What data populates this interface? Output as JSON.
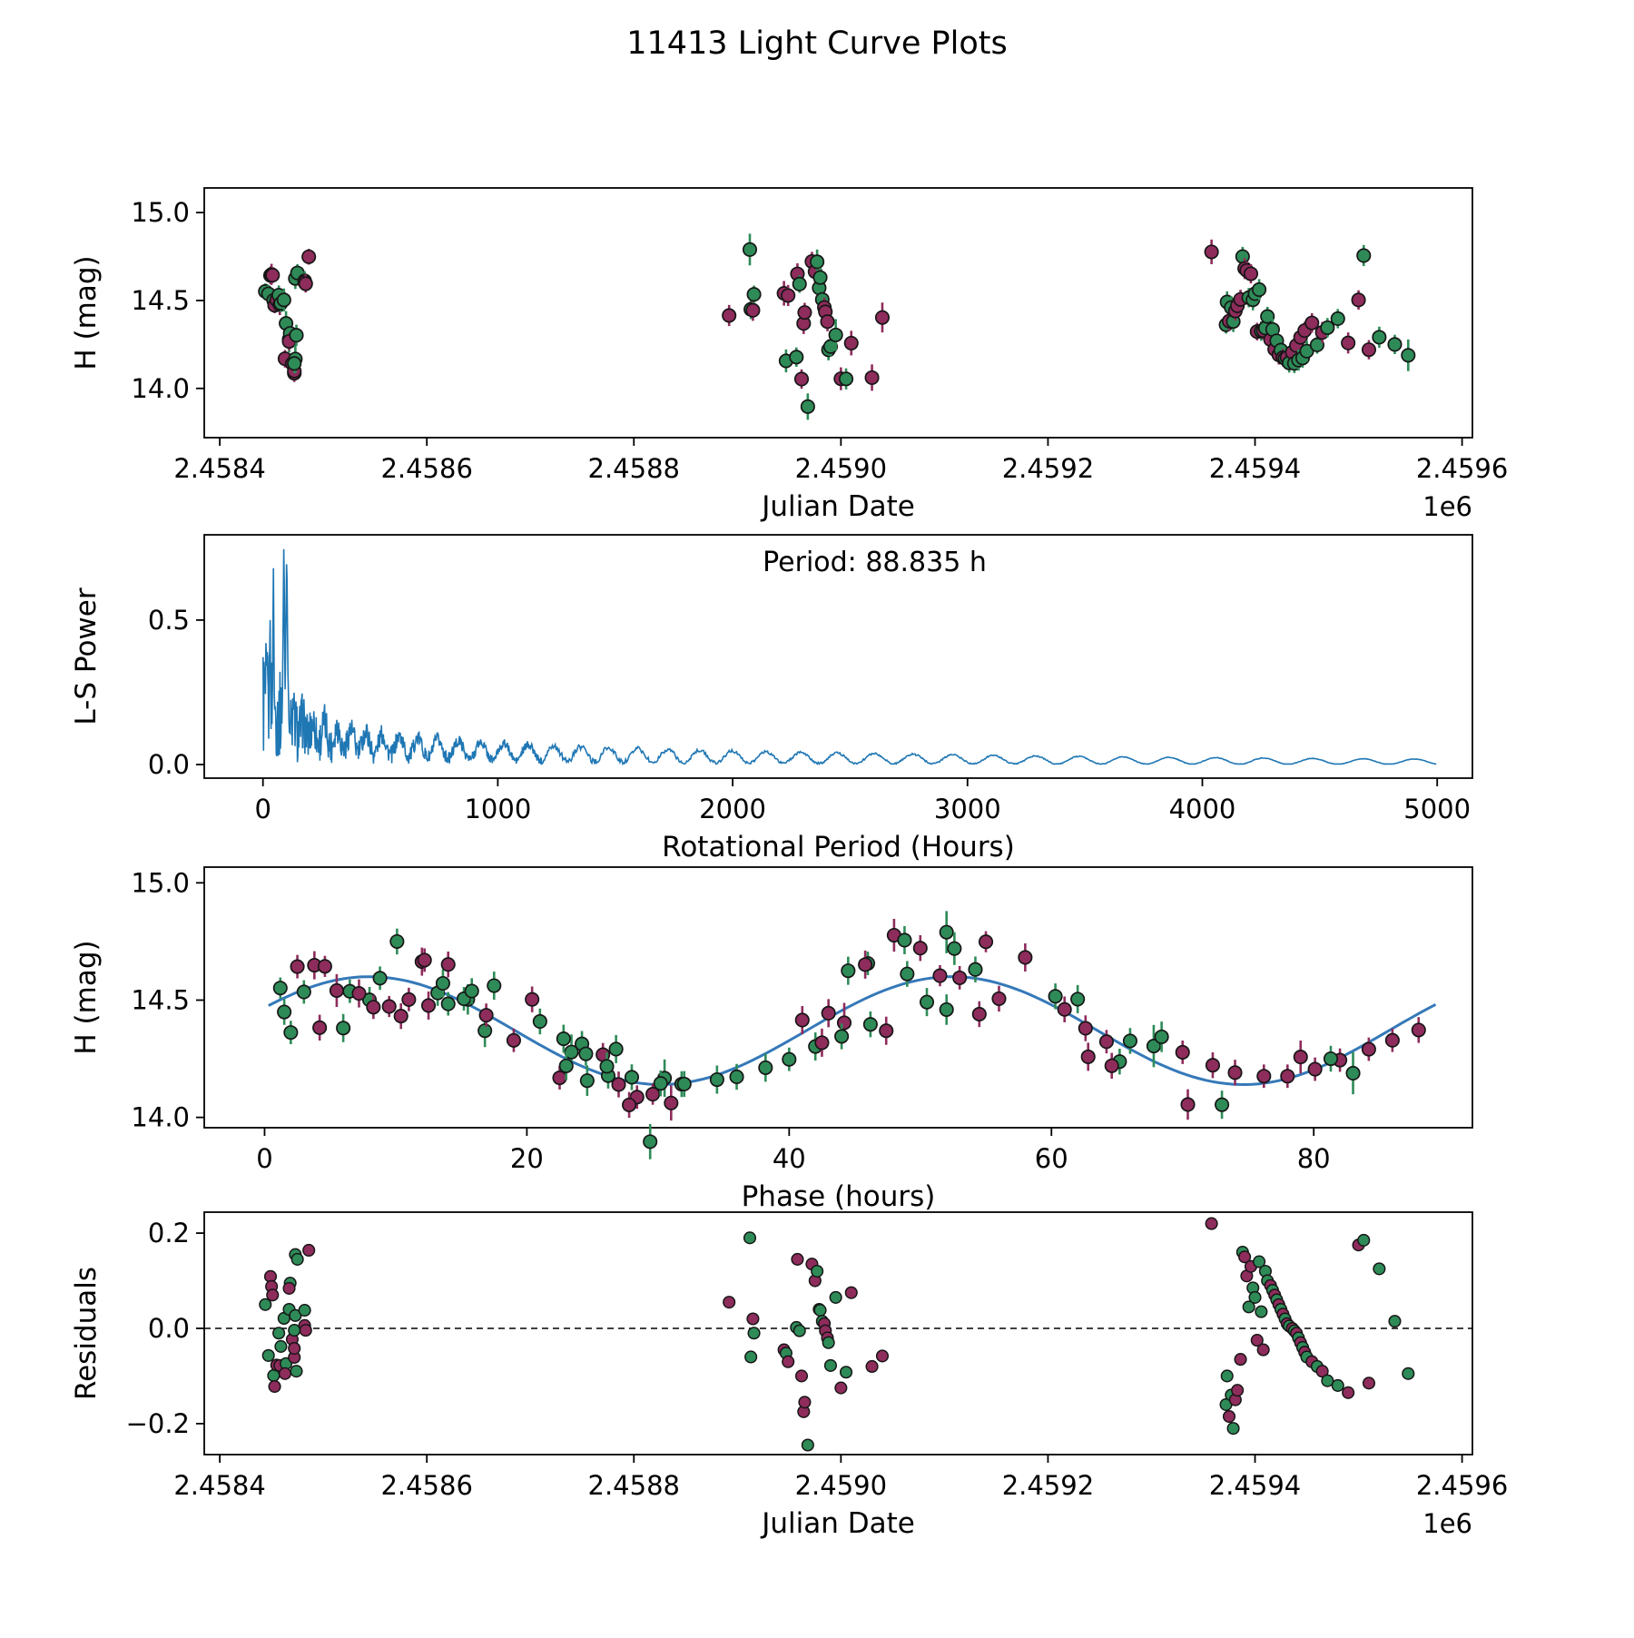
{
  "figure": {
    "title": "11413 Light Curve Plots",
    "background": "#ffffff"
  },
  "colors": {
    "band_green": "#2e8b57",
    "band_purple": "#8e2c5c",
    "marker_edge": "#161616",
    "periodogram_line": "#1f77b4",
    "fit_line": "#3579b8",
    "zero_dash": "#000000",
    "text": "#000000"
  },
  "model_fit": {
    "mean_mag": 14.37,
    "amplitude_mag": 0.23,
    "period_hours": 88.835,
    "cycles_per_period": 2,
    "peak_phase_hours": 8.0,
    "curve_x_start": 0.3,
    "curve_x_end": 89.5
  },
  "chart_data": [
    {
      "type": "scatter",
      "id": "light_curve_jd",
      "xlabel": "Julian Date",
      "ylabel": "H (mag)",
      "offset_label": "1e6",
      "xlim": [
        2.458385,
        2.45961
      ],
      "ylim": [
        13.72,
        15.14
      ],
      "xticks": [
        2.4584,
        2.4586,
        2.4588,
        2.459,
        2.4592,
        2.4594,
        2.4596
      ],
      "xtick_labels": [
        "2.4584",
        "2.4586",
        "2.4588",
        "2.4590",
        "2.4592",
        "2.4594",
        "2.4596"
      ],
      "yticks": [
        14.0,
        14.5,
        15.0
      ],
      "ytick_labels": [
        "14.0",
        "14.5",
        "15.0"
      ],
      "points_from": "points",
      "x_field": "jd_1e6",
      "y_field": "h_mag",
      "error_bars": true
    },
    {
      "type": "line",
      "id": "periodogram",
      "xlabel": "Rotational Period (Hours)",
      "ylabel": "L-S Power",
      "annotation": "Period: 88.835 h",
      "best_period_hours": 88.835,
      "xlim": [
        -250,
        5150
      ],
      "ylim": [
        -0.047,
        0.795
      ],
      "xticks": [
        0,
        1000,
        2000,
        3000,
        4000,
        5000
      ],
      "xtick_labels": [
        "0",
        "1000",
        "2000",
        "3000",
        "4000",
        "5000"
      ],
      "yticks": [
        0.0,
        0.5
      ],
      "ytick_labels": [
        "0.0",
        "0.5"
      ],
      "x_start": 0.5,
      "x_end": 5000,
      "peaks": [
        {
          "period": 30.0,
          "power": 0.52,
          "width": 2.5
        },
        {
          "period": 44.4,
          "power": 0.68,
          "width": 3.0
        },
        {
          "period": 88.8,
          "power": 0.75,
          "width": 4.0
        },
        {
          "period": 101.0,
          "power": 0.7,
          "width": 5.0
        }
      ],
      "noise_envelope": {
        "a1": 0.3,
        "s1": 130,
        "a2": 0.12,
        "s2": 450,
        "a3": 0.035,
        "s3": 1500
      },
      "slow_oscillation": {
        "amp_a": 0.075,
        "amp_scale": 2600,
        "amp_floor": 0.007,
        "sqrt_freq": 3.97
      }
    },
    {
      "type": "scatter+line",
      "id": "phase_folded",
      "xlabel": "Phase (hours)",
      "ylabel": "H (mag)",
      "xlim": [
        -4.6,
        92.1
      ],
      "ylim": [
        13.956,
        15.067
      ],
      "xticks": [
        0,
        20,
        40,
        60,
        80
      ],
      "xtick_labels": [
        "0",
        "20",
        "40",
        "60",
        "80"
      ],
      "yticks": [
        14.0,
        14.5,
        15.0
      ],
      "ytick_labels": [
        "14.0",
        "14.5",
        "15.0"
      ],
      "points_from": "points",
      "x_field": "phase_hours",
      "y_field": "h_mag",
      "error_bars": true
    },
    {
      "type": "scatter",
      "id": "residuals",
      "xlabel": "Julian Date",
      "ylabel": "Residuals",
      "offset_label": "1e6",
      "xlim": [
        2.458385,
        2.45961
      ],
      "ylim": [
        -0.265,
        0.244
      ],
      "xticks": [
        2.4584,
        2.4586,
        2.4588,
        2.459,
        2.4592,
        2.4594,
        2.4596
      ],
      "xtick_labels": [
        "2.4584",
        "2.4586",
        "2.4588",
        "2.4590",
        "2.4592",
        "2.4594",
        "2.4596"
      ],
      "yticks": [
        -0.2,
        0.0,
        0.2
      ],
      "ytick_labels": [
        "−0.2",
        "0.0",
        "0.2"
      ],
      "zero_line": true,
      "points_from": "points",
      "x_field": "jd_1e6",
      "y_field": "residual_mag",
      "error_bars": false
    }
  ],
  "points": {
    "fields": [
      "jd_1e6",
      "phase_hours",
      "residual_mag",
      "err_mag",
      "band"
    ],
    "bands": {
      "g": "green",
      "p": "purple"
    },
    "rows": [
      [
        2.458444,
        1.2,
        0.05,
        0.045,
        "g"
      ],
      [
        2.458449,
        2.5,
        0.109,
        0.05,
        "p"
      ],
      [
        2.45845,
        3.8,
        0.088,
        0.06,
        "p"
      ],
      [
        2.458451,
        4.6,
        0.07,
        0.045,
        "p"
      ],
      [
        2.458447,
        6.5,
        -0.057,
        0.05,
        "g"
      ],
      [
        2.458452,
        8.0,
        -0.099,
        0.055,
        "g"
      ],
      [
        2.458453,
        9.5,
        -0.122,
        0.045,
        "p"
      ],
      [
        2.458455,
        11.0,
        -0.077,
        0.05,
        "p"
      ],
      [
        2.458458,
        12.5,
        -0.078,
        0.06,
        "p"
      ],
      [
        2.458457,
        13.2,
        -0.01,
        0.055,
        "g"
      ],
      [
        2.458459,
        14.0,
        -0.038,
        0.05,
        "g"
      ],
      [
        2.458462,
        15.5,
        0.021,
        0.065,
        "g"
      ],
      [
        2.458464,
        16.8,
        -0.074,
        0.07,
        "g"
      ],
      [
        2.458463,
        22.5,
        -0.095,
        0.05,
        "p"
      ],
      [
        2.458467,
        23.4,
        0.04,
        0.075,
        "g"
      ],
      [
        2.458468,
        24.2,
        0.095,
        0.055,
        "g"
      ],
      [
        2.458467,
        25.8,
        0.084,
        0.05,
        "p"
      ],
      [
        2.45847,
        27.0,
        -0.023,
        0.055,
        "p"
      ],
      [
        2.458472,
        28.4,
        -0.061,
        0.05,
        "p"
      ],
      [
        2.458472,
        29.6,
        -0.042,
        0.045,
        "p"
      ],
      [
        2.458473,
        30.5,
        0.027,
        0.08,
        "g"
      ],
      [
        2.458472,
        31.8,
        -0.004,
        0.055,
        "g"
      ],
      [
        2.458474,
        42.0,
        -0.09,
        0.06,
        "g"
      ],
      [
        2.458473,
        44.5,
        0.155,
        0.06,
        "g"
      ],
      [
        2.458475,
        46.0,
        0.145,
        0.05,
        "g"
      ],
      [
        2.458482,
        49.0,
        0.038,
        0.055,
        "g"
      ],
      [
        2.458482,
        51.5,
        0.006,
        0.045,
        "p"
      ],
      [
        2.458483,
        53.0,
        -0.004,
        0.05,
        "p"
      ],
      [
        2.458486,
        55.0,
        0.164,
        0.045,
        "p"
      ],
      [
        2.458892,
        41.0,
        0.055,
        0.06,
        "p"
      ],
      [
        2.458912,
        52.0,
        0.19,
        0.09,
        "g"
      ],
      [
        2.458913,
        1.5,
        -0.06,
        0.055,
        "g"
      ],
      [
        2.458915,
        43.0,
        0.02,
        0.06,
        "p"
      ],
      [
        2.458916,
        3.0,
        -0.01,
        0.05,
        "g"
      ],
      [
        2.458945,
        5.5,
        -0.045,
        0.07,
        "p"
      ],
      [
        2.458947,
        24.6,
        -0.052,
        0.065,
        "g"
      ],
      [
        2.458949,
        7.2,
        -0.07,
        0.06,
        "p"
      ],
      [
        2.458957,
        26.2,
        0.002,
        0.055,
        "g"
      ],
      [
        2.458958,
        45.8,
        0.145,
        0.06,
        "p"
      ],
      [
        2.45896,
        8.8,
        -0.005,
        0.05,
        "g"
      ],
      [
        2.458962,
        27.8,
        -0.1,
        0.055,
        "p"
      ],
      [
        2.458964,
        47.4,
        -0.175,
        0.06,
        "p"
      ],
      [
        2.458965,
        10.4,
        -0.155,
        0.055,
        "p"
      ],
      [
        2.458968,
        29.4,
        -0.245,
        0.075,
        "g"
      ],
      [
        2.458972,
        50.0,
        0.135,
        0.055,
        "p"
      ],
      [
        2.458975,
        12.0,
        0.1,
        0.06,
        "p"
      ],
      [
        2.458977,
        52.6,
        0.12,
        0.07,
        "g"
      ],
      [
        2.458979,
        13.6,
        0.04,
        0.06,
        "g"
      ],
      [
        2.45898,
        54.2,
        0.038,
        0.055,
        "g"
      ],
      [
        2.458982,
        15.2,
        0.015,
        0.05,
        "g"
      ],
      [
        2.458984,
        61.0,
        0.01,
        0.055,
        "p"
      ],
      [
        2.458985,
        16.9,
        -0.005,
        0.05,
        "p"
      ],
      [
        2.458987,
        62.6,
        -0.02,
        0.055,
        "p"
      ],
      [
        2.458988,
        23.0,
        -0.03,
        0.06,
        "g"
      ],
      [
        2.45899,
        65.2,
        -0.078,
        0.055,
        "g"
      ],
      [
        2.458995,
        67.8,
        0.065,
        0.09,
        "g"
      ],
      [
        2.459,
        70.4,
        -0.125,
        0.065,
        "p"
      ],
      [
        2.459005,
        73.0,
        -0.092,
        0.06,
        "g"
      ],
      [
        2.45901,
        79.0,
        0.075,
        0.07,
        "p"
      ],
      [
        2.45903,
        31.0,
        -0.08,
        0.075,
        "p"
      ],
      [
        2.45904,
        44.2,
        -0.058,
        0.085,
        "p"
      ],
      [
        2.459358,
        48.0,
        0.22,
        0.07,
        "p"
      ],
      [
        2.459372,
        2.0,
        -0.16,
        0.05,
        "g"
      ],
      [
        2.459373,
        50.5,
        -0.1,
        0.06,
        "g"
      ],
      [
        2.459375,
        4.2,
        -0.185,
        0.055,
        "p"
      ],
      [
        2.459377,
        52.0,
        -0.14,
        0.065,
        "g"
      ],
      [
        2.459379,
        6.0,
        -0.21,
        0.06,
        "g"
      ],
      [
        2.459381,
        54.5,
        -0.15,
        0.055,
        "p"
      ],
      [
        2.459383,
        8.3,
        -0.13,
        0.05,
        "p"
      ],
      [
        2.459386,
        56.0,
        -0.065,
        0.055,
        "p"
      ],
      [
        2.459388,
        10.1,
        0.16,
        0.055,
        "g"
      ],
      [
        2.45939,
        58.0,
        0.15,
        0.06,
        "p"
      ],
      [
        2.459392,
        12.2,
        0.11,
        0.05,
        "p"
      ],
      [
        2.459394,
        60.3,
        0.045,
        0.055,
        "g"
      ],
      [
        2.459396,
        14.0,
        0.13,
        0.055,
        "p"
      ],
      [
        2.459398,
        62.0,
        0.085,
        0.06,
        "g"
      ],
      [
        2.4594,
        15.8,
        0.065,
        0.055,
        "g"
      ],
      [
        2.459402,
        64.2,
        -0.025,
        0.05,
        "p"
      ],
      [
        2.459404,
        17.5,
        0.14,
        0.06,
        "g"
      ],
      [
        2.459406,
        66.0,
        0.035,
        0.055,
        "g"
      ],
      [
        2.459408,
        19.0,
        -0.045,
        0.05,
        "p"
      ],
      [
        2.45941,
        68.4,
        0.12,
        0.065,
        "g"
      ],
      [
        2.459412,
        21.0,
        0.1,
        0.055,
        "g"
      ],
      [
        2.459415,
        70.0,
        0.09,
        0.05,
        "p"
      ],
      [
        2.459417,
        22.8,
        0.08,
        0.06,
        "g"
      ],
      [
        2.459419,
        72.3,
        0.07,
        0.055,
        "p"
      ],
      [
        2.459421,
        24.5,
        0.06,
        0.05,
        "g"
      ],
      [
        2.459423,
        74.0,
        0.05,
        0.055,
        "p"
      ],
      [
        2.459425,
        26.1,
        0.04,
        0.06,
        "g"
      ],
      [
        2.459427,
        76.2,
        0.03,
        0.05,
        "p"
      ],
      [
        2.459429,
        28.0,
        0.02,
        0.055,
        "g"
      ],
      [
        2.459431,
        78.0,
        0.01,
        0.05,
        "p"
      ],
      [
        2.459433,
        30.2,
        0.005,
        0.055,
        "g"
      ],
      [
        2.459436,
        80.1,
        0.0,
        0.05,
        "p"
      ],
      [
        2.459438,
        32.0,
        -0.005,
        0.055,
        "g"
      ],
      [
        2.45944,
        82.0,
        -0.01,
        0.05,
        "p"
      ],
      [
        2.459442,
        34.5,
        -0.02,
        0.06,
        "g"
      ],
      [
        2.459444,
        84.2,
        -0.03,
        0.05,
        "p"
      ],
      [
        2.459446,
        36.0,
        -0.04,
        0.055,
        "g"
      ],
      [
        2.459448,
        86.0,
        -0.05,
        0.05,
        "p"
      ],
      [
        2.45945,
        38.2,
        -0.06,
        0.06,
        "g"
      ],
      [
        2.459455,
        88.0,
        -0.07,
        0.055,
        "p"
      ],
      [
        2.45946,
        40.0,
        -0.08,
        0.05,
        "g"
      ],
      [
        2.459465,
        42.5,
        -0.09,
        0.06,
        "p"
      ],
      [
        2.45947,
        44.0,
        -0.11,
        0.055,
        "g"
      ],
      [
        2.45948,
        46.2,
        -0.12,
        0.055,
        "g"
      ],
      [
        2.45949,
        62.8,
        -0.135,
        0.06,
        "p"
      ],
      [
        2.4595,
        20.4,
        0.175,
        0.055,
        "p"
      ],
      [
        2.459505,
        48.8,
        0.185,
        0.06,
        "g"
      ],
      [
        2.45951,
        64.6,
        -0.115,
        0.055,
        "p"
      ],
      [
        2.45952,
        26.8,
        0.125,
        0.06,
        "g"
      ],
      [
        2.459535,
        81.3,
        0.015,
        0.055,
        "g"
      ],
      [
        2.459548,
        83.0,
        -0.095,
        0.09,
        "g"
      ]
    ]
  }
}
